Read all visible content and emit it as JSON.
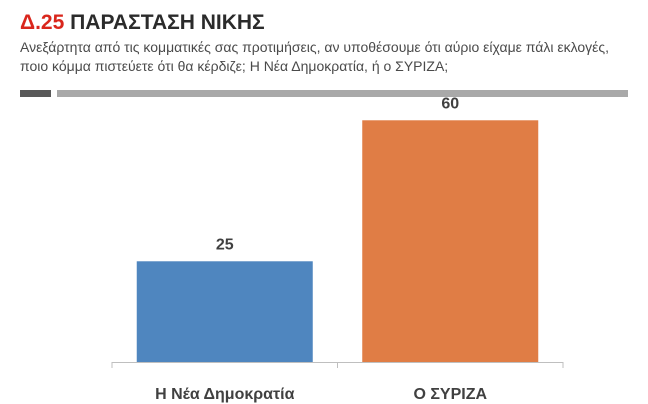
{
  "header": {
    "code": "Δ.25",
    "title": "ΠΑΡΑΣΤΑΣΗ ΝΙΚΗΣ",
    "question": "Ανεξάρτητα από τις κομματικές σας προτιμήσεις, αν υποθέσουμε ότι αύριο είχαμε πάλι εκλογές, ποιο κόμμα πιστεύετε ότι θα κέρδιζε; Η Νέα Δημοκρατία, ή ο ΣΥΡΙΖΑ;"
  },
  "chart_data": {
    "type": "bar",
    "categories": [
      "Η Νέα Δημοκρατία",
      "Ο ΣΥΡΙΖΑ"
    ],
    "values": [
      25,
      60
    ],
    "colors": [
      "#4f86bf",
      "#e07d45"
    ],
    "data_labels": true,
    "grid": false,
    "legend": "none",
    "ylim": [
      0,
      70
    ]
  }
}
